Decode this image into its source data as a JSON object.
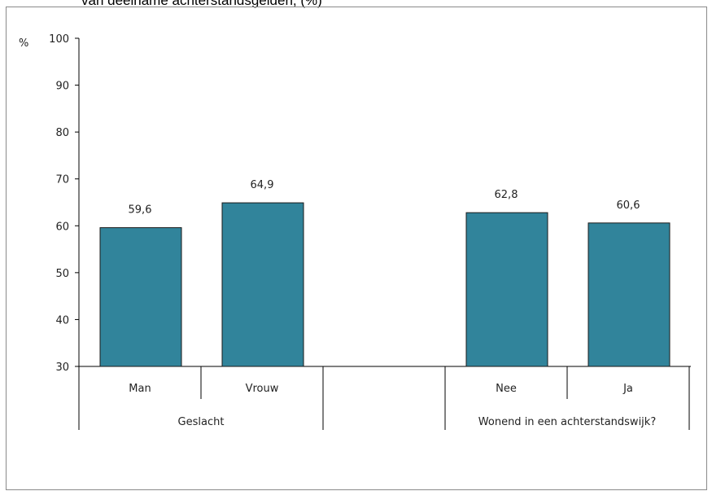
{
  "header": {
    "title_fragment": "van deelname achterstandsgelden, (%)"
  },
  "chart_data": {
    "type": "bar",
    "ylabel": "%",
    "ylim": [
      30,
      100
    ],
    "yticks": [
      30,
      40,
      50,
      60,
      70,
      80,
      90,
      100
    ],
    "grid": false,
    "bar_color": "#31849b",
    "categories": [
      "Man",
      "Vrouw",
      "Nee",
      "Ja"
    ],
    "values": [
      59.6,
      64.9,
      62.8,
      60.6
    ],
    "value_labels": [
      "59,6",
      "64,9",
      "62,8",
      "60,6"
    ],
    "groups": [
      {
        "label": "Geslacht",
        "categories": [
          "Man",
          "Vrouw"
        ]
      },
      {
        "label": "Wonend in een achterstandswijk?",
        "categories": [
          "Nee",
          "Ja"
        ]
      }
    ]
  }
}
